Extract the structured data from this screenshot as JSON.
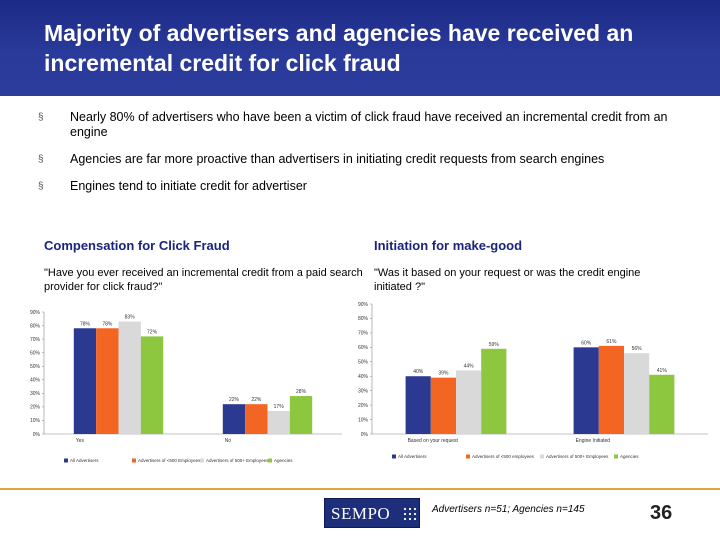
{
  "title": "Majority of advertisers and agencies have received an incremental credit for click fraud",
  "bullets": [
    "Nearly 80% of advertisers who have been a victim of click fraud have received an incremental credit from an engine",
    "Agencies are far more proactive than advertisers in initiating credit requests from search engines",
    "Engines tend to initiate credit for advertiser"
  ],
  "bullet_marker": "§",
  "left_section": {
    "heading": "Compensation for Click Fraud",
    "question": "\"Have you ever received an incremental credit from a paid search provider for click fraud?\""
  },
  "right_section": {
    "heading": "Initiation for make-good",
    "question": "\"Was it based on your request or was the credit engine initiated ?\""
  },
  "chart_data": [
    {
      "type": "bar",
      "categories": [
        "Yes",
        "No"
      ],
      "ylim": [
        0,
        90
      ],
      "yticks": [
        "0%",
        "10%",
        "20%",
        "30%",
        "40%",
        "50%",
        "60%",
        "70%",
        "80%",
        "90%"
      ],
      "series": [
        {
          "name": "All Advertisers",
          "color": "#2b3990",
          "values": [
            78,
            22
          ]
        },
        {
          "name": "Advertisers of <500 Employees",
          "color": "#f26522",
          "values": [
            78,
            22
          ]
        },
        {
          "name": "Advertisers of 500+ Employees",
          "color": "#d9d9d9",
          "values": [
            83,
            17
          ]
        },
        {
          "name": "Agencies",
          "color": "#8dc63f",
          "values": [
            72,
            28
          ]
        }
      ],
      "value_labels": [
        [
          "78%",
          "22%"
        ],
        [
          "78%",
          "22%"
        ],
        [
          "83%",
          "17%"
        ],
        [
          "72%",
          "28%"
        ]
      ],
      "legend": "bottom"
    },
    {
      "type": "bar",
      "categories": [
        "Based on your request",
        "Engine Initiated"
      ],
      "ylim": [
        0,
        90
      ],
      "yticks": [
        "0%",
        "10%",
        "20%",
        "30%",
        "40%",
        "50%",
        "60%",
        "70%",
        "80%",
        "90%"
      ],
      "series": [
        {
          "name": "All Advertisers",
          "color": "#2b3990",
          "values": [
            40,
            60
          ]
        },
        {
          "name": "Advertisers of <500 employees",
          "color": "#f26522",
          "values": [
            39,
            61
          ]
        },
        {
          "name": "Advertisers of 500+ Employees",
          "color": "#d9d9d9",
          "values": [
            44,
            56
          ]
        },
        {
          "name": "Agencies",
          "color": "#8dc63f",
          "values": [
            59,
            41
          ]
        }
      ],
      "value_labels": [
        [
          "40%",
          "60%"
        ],
        [
          "39%",
          "61%"
        ],
        [
          "44%",
          "56%"
        ],
        [
          "59%",
          "41%"
        ]
      ],
      "legend": "bottom"
    }
  ],
  "footer": {
    "logo_text": "SEMPO",
    "note": "Advertisers n=51; Agencies n=145",
    "page_number": "36"
  }
}
